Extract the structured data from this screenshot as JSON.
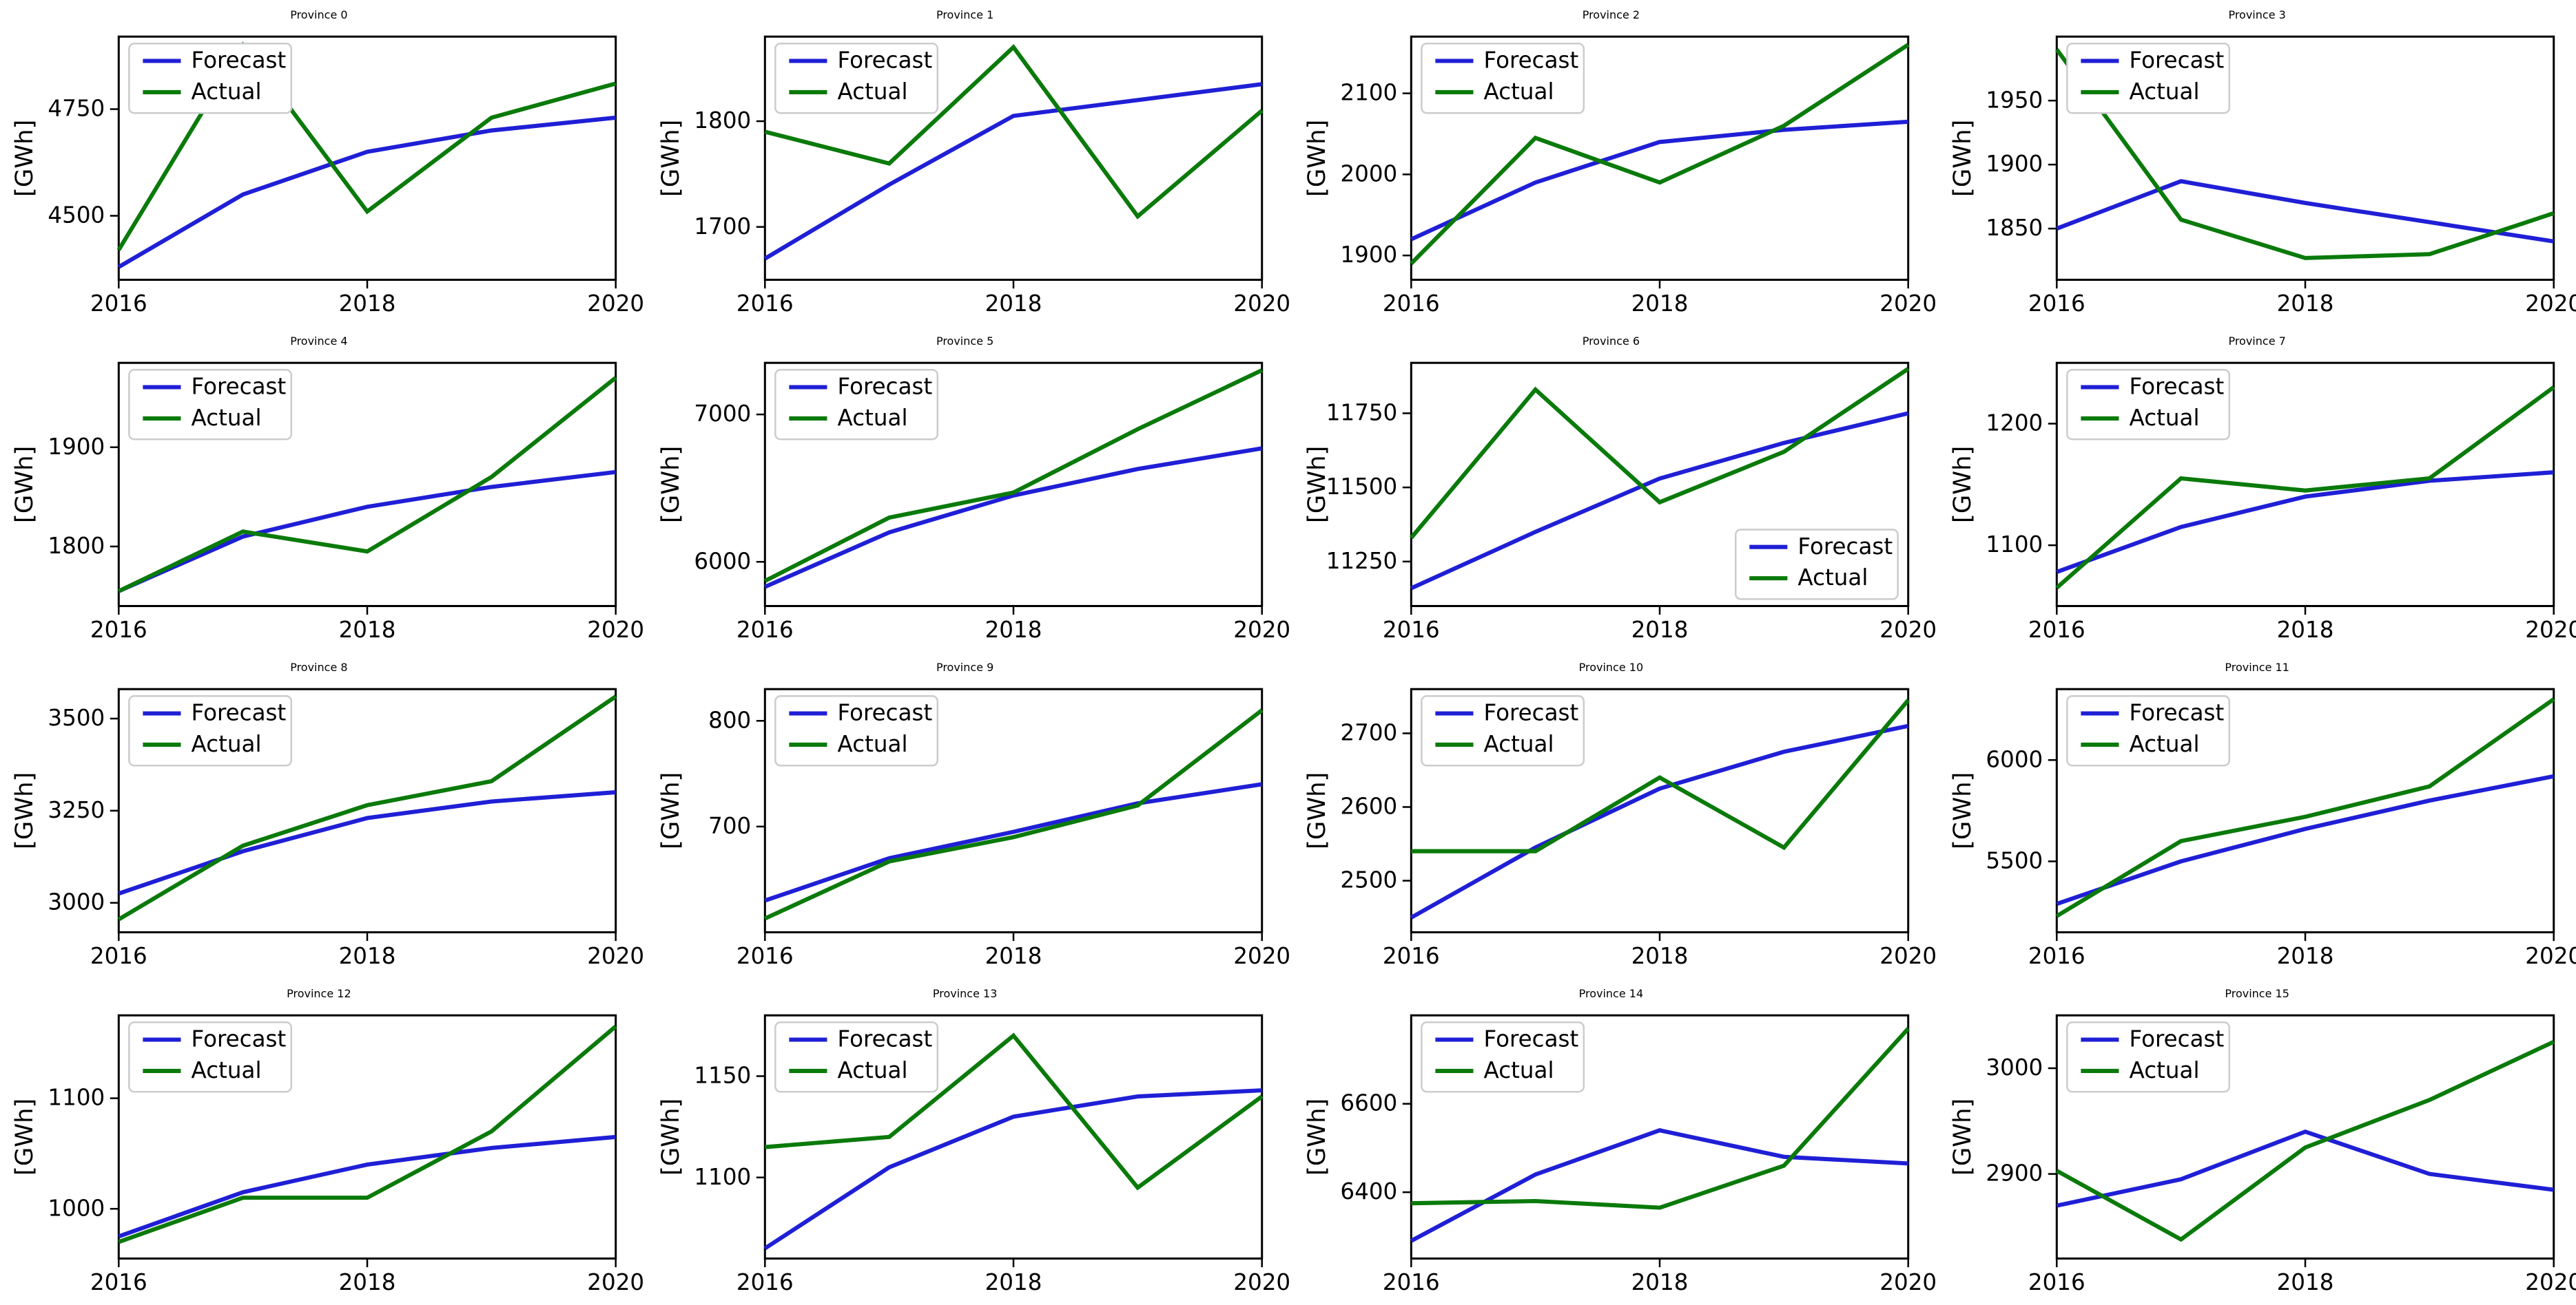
{
  "figure": {
    "rows": 4,
    "cols": 4,
    "background_color": "#ffffff",
    "ylabel": "[GWh]",
    "legend": {
      "labels": [
        "Forecast",
        "Actual"
      ],
      "position": "upper-left",
      "frame_color": "#cccccc",
      "face_color": "#ffffff"
    },
    "series_style": {
      "forecast": {
        "color": "#1f1fd6",
        "linewidth": 2.4,
        "linestyle": "solid"
      },
      "actual": {
        "color": "#0a7a0a",
        "linewidth": 2.4,
        "linestyle": "solid"
      }
    },
    "axis_color": "#000000",
    "tick_fontsize": 13,
    "title_fontsize": 16,
    "label_fontsize": 14,
    "x": {
      "values": [
        2016,
        2017,
        2018,
        2019,
        2020
      ],
      "ticks": [
        2016,
        2018,
        2020
      ],
      "lim": [
        2016,
        2020
      ]
    }
  },
  "panels": [
    {
      "title": "Province 0",
      "yticks": [
        4500,
        4750
      ],
      "ylim": [
        4350,
        4920
      ],
      "forecast": [
        4380,
        4550,
        4650,
        4700,
        4730
      ],
      "actual": [
        4420,
        4900,
        4510,
        4730,
        4810
      ]
    },
    {
      "title": "Province 1",
      "yticks": [
        1700,
        1800
      ],
      "ylim": [
        1650,
        1880
      ],
      "forecast": [
        1670,
        1740,
        1805,
        1820,
        1835
      ],
      "actual": [
        1790,
        1760,
        1870,
        1710,
        1810
      ]
    },
    {
      "title": "Province 2",
      "yticks": [
        1900,
        2000,
        2100
      ],
      "ylim": [
        1870,
        2170
      ],
      "forecast": [
        1920,
        1990,
        2040,
        2055,
        2065
      ],
      "actual": [
        1890,
        2045,
        1990,
        2060,
        2160
      ]
    },
    {
      "title": "Province 3",
      "yticks": [
        1850,
        1900,
        1950
      ],
      "ylim": [
        1810,
        2000
      ],
      "forecast": [
        1850,
        1887,
        1870,
        1855,
        1840
      ],
      "actual": [
        1990,
        1857,
        1827,
        1830,
        1862
      ]
    },
    {
      "title": "Province 4",
      "yticks": [
        1800,
        1900
      ],
      "ylim": [
        1740,
        1985
      ],
      "forecast": [
        1755,
        1810,
        1840,
        1860,
        1875
      ],
      "actual": [
        1755,
        1815,
        1795,
        1870,
        1970
      ]
    },
    {
      "title": "Province 5",
      "yticks": [
        6000,
        7000
      ],
      "ylim": [
        5700,
        7350
      ],
      "forecast": [
        5830,
        6200,
        6450,
        6630,
        6770
      ],
      "actual": [
        5870,
        6300,
        6470,
        6900,
        7300
      ]
    },
    {
      "title": "Province 6",
      "yticks": [
        11250,
        11500,
        11750
      ],
      "ylim": [
        11100,
        11920
      ],
      "forecast": [
        11160,
        11350,
        11530,
        11650,
        11750
      ],
      "actual": [
        11330,
        11830,
        11450,
        11620,
        11900
      ],
      "legend_pos": "lower-right"
    },
    {
      "title": "Province 7",
      "yticks": [
        1100,
        1200
      ],
      "ylim": [
        1050,
        1250
      ],
      "forecast": [
        1078,
        1115,
        1140,
        1153,
        1160
      ],
      "actual": [
        1065,
        1155,
        1145,
        1155,
        1230
      ]
    },
    {
      "title": "Province 8",
      "yticks": [
        3000,
        3250,
        3500
      ],
      "ylim": [
        2920,
        3580
      ],
      "forecast": [
        3025,
        3140,
        3230,
        3275,
        3300
      ],
      "actual": [
        2955,
        3155,
        3265,
        3330,
        3560
      ]
    },
    {
      "title": "Province 9",
      "yticks": [
        700,
        800
      ],
      "ylim": [
        600,
        830
      ],
      "forecast": [
        630,
        670,
        695,
        722,
        740
      ],
      "actual": [
        613,
        667,
        690,
        720,
        810
      ]
    },
    {
      "title": "Province 10",
      "yticks": [
        2500,
        2600,
        2700
      ],
      "ylim": [
        2430,
        2760
      ],
      "forecast": [
        2450,
        2545,
        2625,
        2675,
        2710
      ],
      "actual": [
        2540,
        2540,
        2640,
        2545,
        2745
      ]
    },
    {
      "title": "Province 11",
      "yticks": [
        5500,
        6000
      ],
      "ylim": [
        5150,
        6350
      ],
      "forecast": [
        5290,
        5500,
        5660,
        5800,
        5920
      ],
      "actual": [
        5230,
        5600,
        5720,
        5870,
        6300
      ]
    },
    {
      "title": "Province 12",
      "yticks": [
        1000,
        1100
      ],
      "ylim": [
        955,
        1175
      ],
      "forecast": [
        975,
        1015,
        1040,
        1055,
        1065
      ],
      "actual": [
        970,
        1010,
        1010,
        1070,
        1165
      ]
    },
    {
      "title": "Province 13",
      "yticks": [
        1100,
        1150
      ],
      "ylim": [
        1060,
        1180
      ],
      "forecast": [
        1065,
        1105,
        1130,
        1140,
        1143
      ],
      "actual": [
        1115,
        1120,
        1170,
        1095,
        1140
      ]
    },
    {
      "title": "Province 14",
      "yticks": [
        6400,
        6600
      ],
      "ylim": [
        6250,
        6800
      ],
      "forecast": [
        6290,
        6440,
        6540,
        6480,
        6465
      ],
      "actual": [
        6375,
        6380,
        6365,
        6460,
        6770
      ]
    },
    {
      "title": "Province 15",
      "yticks": [
        2900,
        3000
      ],
      "ylim": [
        2820,
        3050
      ],
      "forecast": [
        2870,
        2895,
        2940,
        2900,
        2885
      ],
      "actual": [
        2903,
        2838,
        2925,
        2970,
        3025
      ]
    }
  ]
}
